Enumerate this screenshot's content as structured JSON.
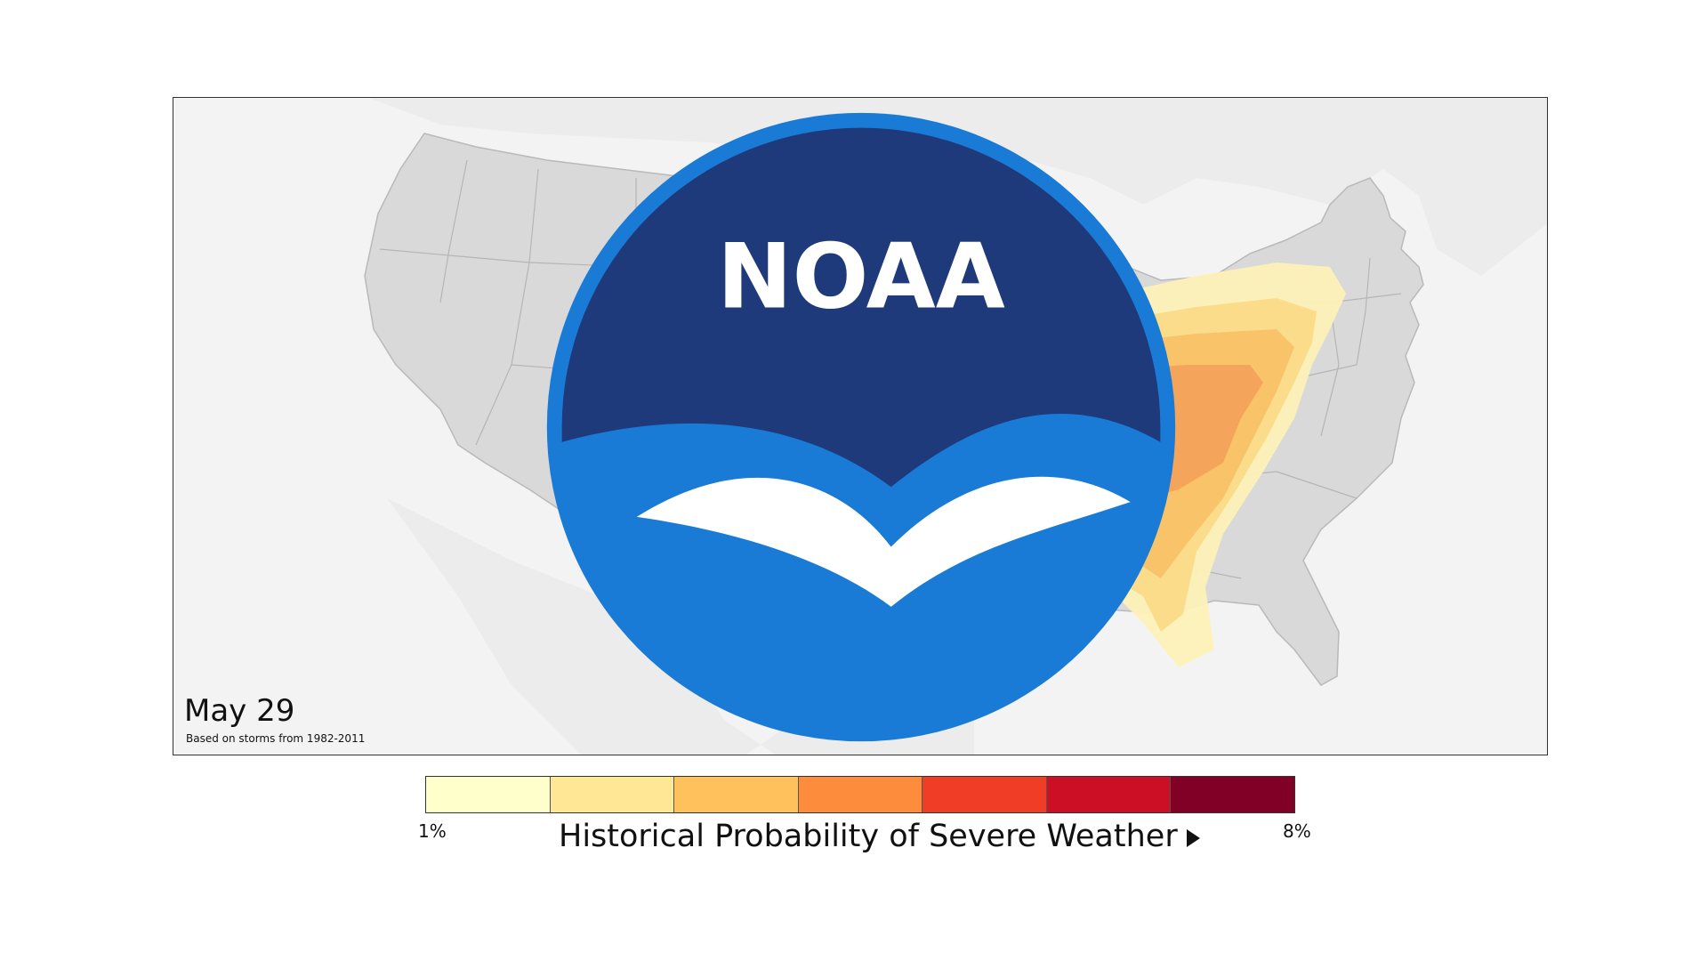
{
  "map": {
    "date": "May 29",
    "source_note": "Based on storms from 1982-2011",
    "logo_text": "NOAA"
  },
  "legend": {
    "title": "Historical Probability of Severe Weather",
    "min_label": "1%",
    "max_label": "8%",
    "colors": [
      "#ffffcc",
      "#ffe796",
      "#ffc15c",
      "#fd8d3c",
      "#f03e26",
      "#cc0f24",
      "#800026"
    ]
  },
  "icons": {
    "play": "play-icon",
    "logo": "noaa-logo-icon"
  }
}
